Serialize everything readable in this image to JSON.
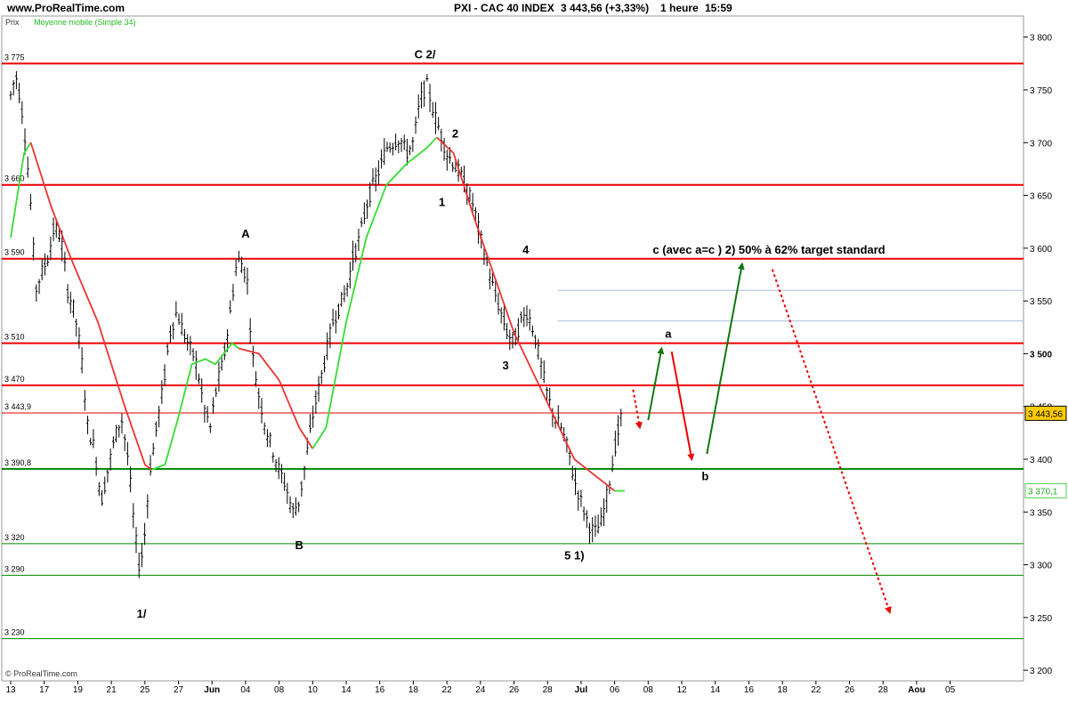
{
  "header": {
    "site": "www.ProRealTime.com",
    "title": "PXI - CAC 40 INDEX",
    "price": "3 443,56 (+3,33%)",
    "period": "1 heure",
    "time": "15:59"
  },
  "legend": {
    "price": "Prix",
    "ma": "Moyenne mobile (Simple 34)"
  },
  "footer": {
    "copyright": "© ProRealTime.com"
  },
  "colors": {
    "candle": "#000000",
    "ma_green": "#33dd33",
    "ma_red": "#ee3333",
    "resistance": "#ee0000",
    "support": "#008800",
    "thin_blue": "#aabbdd",
    "last_price_bg": "#ffcc00"
  },
  "chart_data": {
    "type": "candlestick",
    "ylim": [
      3190,
      3820
    ],
    "yticks": [
      3200,
      3250,
      3300,
      3350,
      3400,
      3450,
      3500,
      3550,
      3600,
      3650,
      3700,
      3750,
      3800
    ],
    "ytick_labels": [
      "3 200",
      "3 250",
      "3 300",
      "3 350",
      "3 400",
      "3 450",
      "3 500",
      "3 550",
      "3 600",
      "3 650",
      "3 700",
      "3 750",
      "3 800"
    ],
    "xticks": [
      {
        "i": 0,
        "label": "13"
      },
      {
        "i": 1,
        "label": "17"
      },
      {
        "i": 2,
        "label": "19"
      },
      {
        "i": 3,
        "label": "21"
      },
      {
        "i": 4,
        "label": "25"
      },
      {
        "i": 5,
        "label": "27"
      },
      {
        "i": 6,
        "label": "Jun"
      },
      {
        "i": 7,
        "label": "04"
      },
      {
        "i": 8,
        "label": "08"
      },
      {
        "i": 9,
        "label": "10"
      },
      {
        "i": 10,
        "label": "14"
      },
      {
        "i": 11,
        "label": "16"
      },
      {
        "i": 12,
        "label": "18"
      },
      {
        "i": 13,
        "label": "22"
      },
      {
        "i": 14,
        "label": "24"
      },
      {
        "i": 15,
        "label": "26"
      },
      {
        "i": 16,
        "label": "28"
      },
      {
        "i": 17,
        "label": "Jul"
      },
      {
        "i": 18,
        "label": "06"
      },
      {
        "i": 19,
        "label": "08"
      },
      {
        "i": 20,
        "label": "12"
      },
      {
        "i": 21,
        "label": "14"
      },
      {
        "i": 22,
        "label": "16"
      },
      {
        "i": 23,
        "label": "18"
      },
      {
        "i": 24,
        "label": "22"
      },
      {
        "i": 25,
        "label": "26"
      },
      {
        "i": 26,
        "label": "28"
      },
      {
        "i": 27,
        "label": "Aou"
      },
      {
        "i": 28,
        "label": "05"
      }
    ],
    "price_path": [
      [
        0,
        3745
      ],
      [
        0.15,
        3765
      ],
      [
        0.3,
        3740
      ],
      [
        0.45,
        3700
      ],
      [
        0.6,
        3640
      ],
      [
        0.75,
        3560
      ],
      [
        0.9,
        3575
      ],
      [
        1.1,
        3590
      ],
      [
        1.3,
        3620
      ],
      [
        1.5,
        3610
      ],
      [
        1.7,
        3560
      ],
      [
        1.9,
        3540
      ],
      [
        2.1,
        3500
      ],
      [
        2.3,
        3430
      ],
      [
        2.5,
        3410
      ],
      [
        2.7,
        3360
      ],
      [
        2.9,
        3390
      ],
      [
        3.1,
        3420
      ],
      [
        3.3,
        3440
      ],
      [
        3.5,
        3400
      ],
      [
        3.7,
        3330
      ],
      [
        3.85,
        3295
      ],
      [
        4.0,
        3330
      ],
      [
        4.15,
        3390
      ],
      [
        4.35,
        3430
      ],
      [
        4.55,
        3470
      ],
      [
        4.75,
        3520
      ],
      [
        4.95,
        3540
      ],
      [
        5.15,
        3520
      ],
      [
        5.35,
        3505
      ],
      [
        5.55,
        3490
      ],
      [
        5.75,
        3450
      ],
      [
        5.95,
        3430
      ],
      [
        6.15,
        3470
      ],
      [
        6.35,
        3495
      ],
      [
        6.55,
        3540
      ],
      [
        6.75,
        3590
      ],
      [
        6.9,
        3585
      ],
      [
        7.05,
        3570
      ],
      [
        7.2,
        3500
      ],
      [
        7.4,
        3460
      ],
      [
        7.6,
        3430
      ],
      [
        7.8,
        3410
      ],
      [
        8.0,
        3390
      ],
      [
        8.2,
        3375
      ],
      [
        8.4,
        3350
      ],
      [
        8.6,
        3360
      ],
      [
        8.8,
        3400
      ],
      [
        9.0,
        3440
      ],
      [
        9.2,
        3470
      ],
      [
        9.4,
        3500
      ],
      [
        9.6,
        3530
      ],
      [
        9.8,
        3545
      ],
      [
        10.0,
        3560
      ],
      [
        10.2,
        3590
      ],
      [
        10.4,
        3610
      ],
      [
        10.6,
        3640
      ],
      [
        10.8,
        3660
      ],
      [
        11.0,
        3675
      ],
      [
        11.2,
        3695
      ],
      [
        11.4,
        3700
      ],
      [
        11.6,
        3705
      ],
      [
        11.8,
        3690
      ],
      [
        12.0,
        3700
      ],
      [
        12.2,
        3740
      ],
      [
        12.4,
        3755
      ],
      [
        12.6,
        3730
      ],
      [
        12.8,
        3710
      ],
      [
        13.0,
        3690
      ],
      [
        13.2,
        3680
      ],
      [
        13.4,
        3670
      ],
      [
        13.6,
        3655
      ],
      [
        13.8,
        3640
      ],
      [
        14.0,
        3610
      ],
      [
        14.2,
        3585
      ],
      [
        14.4,
        3560
      ],
      [
        14.6,
        3540
      ],
      [
        14.8,
        3520
      ],
      [
        15.0,
        3510
      ],
      [
        15.2,
        3530
      ],
      [
        15.4,
        3540
      ],
      [
        15.6,
        3520
      ],
      [
        15.8,
        3490
      ],
      [
        16.0,
        3460
      ],
      [
        16.2,
        3440
      ],
      [
        16.4,
        3430
      ],
      [
        16.6,
        3410
      ],
      [
        16.8,
        3380
      ],
      [
        17.0,
        3360
      ],
      [
        17.2,
        3340
      ],
      [
        17.4,
        3330
      ],
      [
        17.6,
        3340
      ],
      [
        17.8,
        3370
      ],
      [
        18.0,
        3410
      ],
      [
        18.2,
        3440
      ]
    ],
    "ma_segments": [
      {
        "color": "green",
        "points": [
          [
            0,
            3610
          ],
          [
            0.4,
            3690
          ],
          [
            0.6,
            3700
          ]
        ]
      },
      {
        "color": "red",
        "points": [
          [
            0.6,
            3700
          ],
          [
            1.2,
            3640
          ],
          [
            1.8,
            3590
          ],
          [
            2.6,
            3530
          ],
          [
            3.4,
            3450
          ],
          [
            4.0,
            3395
          ],
          [
            4.2,
            3390
          ]
        ]
      },
      {
        "color": "green",
        "points": [
          [
            4.2,
            3390
          ],
          [
            4.6,
            3395
          ],
          [
            5.0,
            3440
          ],
          [
            5.4,
            3490
          ],
          [
            5.8,
            3495
          ],
          [
            6.1,
            3490
          ],
          [
            6.6,
            3510
          ],
          [
            6.8,
            3505
          ]
        ]
      },
      {
        "color": "red",
        "points": [
          [
            6.8,
            3505
          ],
          [
            7.4,
            3500
          ],
          [
            8.0,
            3475
          ],
          [
            8.6,
            3430
          ],
          [
            9.0,
            3410
          ]
        ]
      },
      {
        "color": "green",
        "points": [
          [
            9.0,
            3410
          ],
          [
            9.4,
            3430
          ],
          [
            10.0,
            3530
          ],
          [
            10.6,
            3610
          ],
          [
            11.2,
            3660
          ],
          [
            11.8,
            3680
          ],
          [
            12.4,
            3695
          ],
          [
            12.7,
            3705
          ]
        ]
      },
      {
        "color": "red",
        "points": [
          [
            12.7,
            3705
          ],
          [
            13.2,
            3690
          ],
          [
            13.8,
            3630
          ],
          [
            14.4,
            3575
          ],
          [
            15.0,
            3520
          ],
          [
            15.6,
            3480
          ],
          [
            16.2,
            3440
          ],
          [
            16.8,
            3400
          ],
          [
            17.4,
            3385
          ],
          [
            17.8,
            3375
          ],
          [
            18.0,
            3370
          ]
        ]
      },
      {
        "color": "green",
        "points": [
          [
            18.0,
            3370
          ],
          [
            18.3,
            3370
          ]
        ]
      }
    ],
    "horizontal_levels": [
      {
        "value": 3775,
        "label": "3 775",
        "color": "red",
        "width": 2
      },
      {
        "value": 3660,
        "label": "3 660",
        "color": "red",
        "width": 2
      },
      {
        "value": 3590,
        "label": "3 590",
        "color": "red",
        "width": 2
      },
      {
        "value": 3510,
        "label": "3 510",
        "color": "red",
        "width": 2
      },
      {
        "value": 3470,
        "label": "3 470",
        "color": "red",
        "width": 2
      },
      {
        "value": 3443.9,
        "label": "3 443,9",
        "color": "red",
        "width": 1
      },
      {
        "value": 3390.8,
        "label": "3 390,8",
        "color": "green",
        "width": 2
      },
      {
        "value": 3320,
        "label": "3 320",
        "color": "green",
        "width": 1
      },
      {
        "value": 3290,
        "label": "3 290",
        "color": "green",
        "width": 1
      },
      {
        "value": 3230,
        "label": "3 230",
        "color": "green",
        "width": 1
      }
    ],
    "partial_levels": [
      {
        "value": 3560,
        "x_from": 16.3,
        "color": "blue"
      },
      {
        "value": 3531,
        "x_from": 16.3,
        "color": "blue"
      }
    ],
    "last_price": "3 443,56",
    "last_price_value": 3443.56,
    "ma_last": "3 370,1",
    "ma_last_value": 3370.1,
    "wave_labels": [
      {
        "text": "C 2/",
        "x": 12.35,
        "y": 3780
      },
      {
        "text": "A",
        "x": 7.0,
        "y": 3610
      },
      {
        "text": "2",
        "x": 13.25,
        "y": 3705
      },
      {
        "text": "1",
        "x": 12.85,
        "y": 3640
      },
      {
        "text": "4",
        "x": 15.35,
        "y": 3595
      },
      {
        "text": "3",
        "x": 14.75,
        "y": 3485
      },
      {
        "text": "B",
        "x": 8.6,
        "y": 3315
      },
      {
        "text": "1/",
        "x": 3.9,
        "y": 3250
      },
      {
        "text": "5 1)",
        "x": 16.8,
        "y": 3305
      },
      {
        "text": "a",
        "x": 19.6,
        "y": 3515
      },
      {
        "text": "b",
        "x": 20.7,
        "y": 3380
      },
      {
        "text": "c (avec a=c )  2) 50% à 62% target standard",
        "x": 22.6,
        "y": 3595
      }
    ],
    "arrows": [
      {
        "color": "red",
        "dashed": true,
        "from": [
          18.55,
          3466
        ],
        "to": [
          18.75,
          3430
        ]
      },
      {
        "color": "green",
        "dashed": false,
        "from": [
          19.0,
          3437
        ],
        "to": [
          19.4,
          3505
        ]
      },
      {
        "color": "red",
        "dashed": false,
        "from": [
          19.7,
          3502
        ],
        "to": [
          20.3,
          3400
        ]
      },
      {
        "color": "green",
        "dashed": false,
        "from": [
          20.75,
          3405
        ],
        "to": [
          21.8,
          3585
        ]
      },
      {
        "color": "red",
        "dashed": true,
        "from": [
          22.7,
          3580
        ],
        "to": [
          26.2,
          3255
        ]
      }
    ]
  }
}
